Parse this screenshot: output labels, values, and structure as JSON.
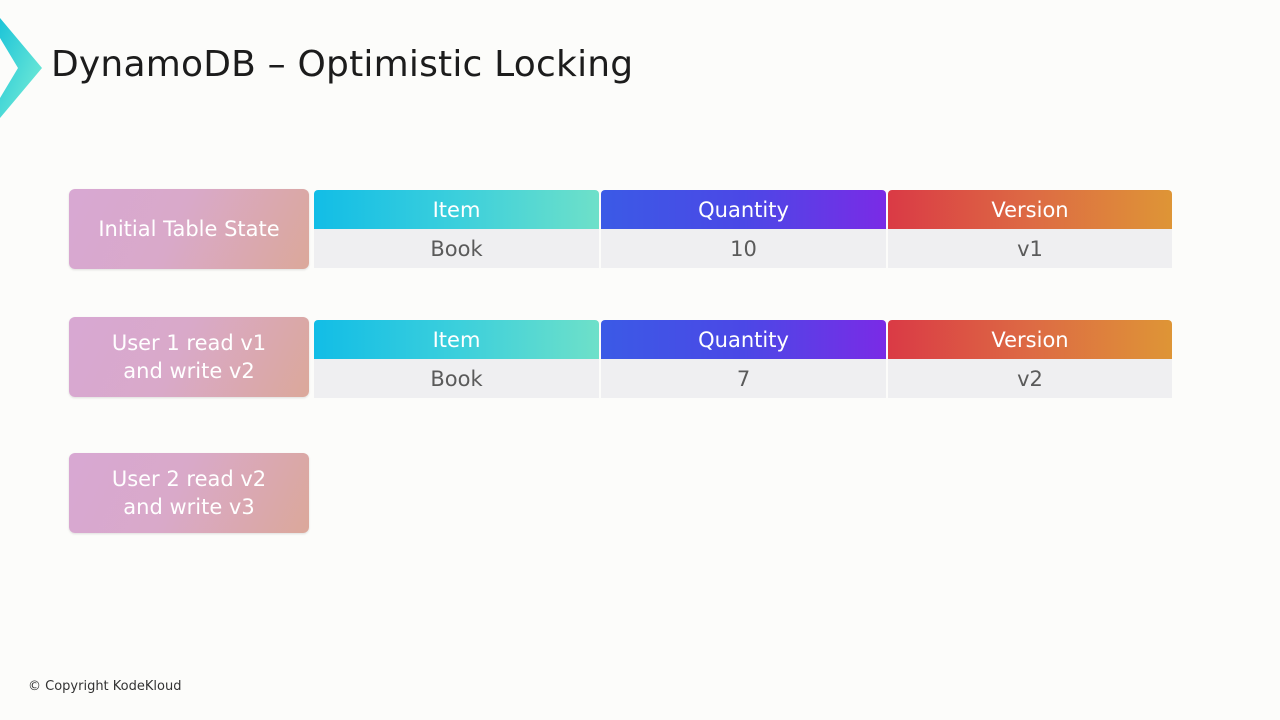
{
  "slide": {
    "title": "DynamoDB – Optimistic Locking",
    "copyright": "© Copyright KodeKloud"
  },
  "rows": [
    {
      "label": "Initial Table State",
      "table": {
        "headers": [
          "Item",
          "Quantity",
          "Version"
        ],
        "values": [
          "Book",
          "10",
          "v1"
        ]
      }
    },
    {
      "label": "User 1 read v1\nand write v2",
      "table": {
        "headers": [
          "Item",
          "Quantity",
          "Version"
        ],
        "values": [
          "Book",
          "7",
          "v2"
        ]
      }
    },
    {
      "label": "User 2 read v2\nand write v3"
    }
  ],
  "colors": {
    "label_gradient": [
      "#d8a8d3",
      "#dba89a"
    ],
    "item_header": [
      "#12bde6",
      "#6ee0c9"
    ],
    "quantity_header": [
      "#3b5ae6",
      "#7a2be6"
    ],
    "version_header": [
      "#da3a45",
      "#de9536"
    ],
    "cell_background": "#efeff1"
  }
}
